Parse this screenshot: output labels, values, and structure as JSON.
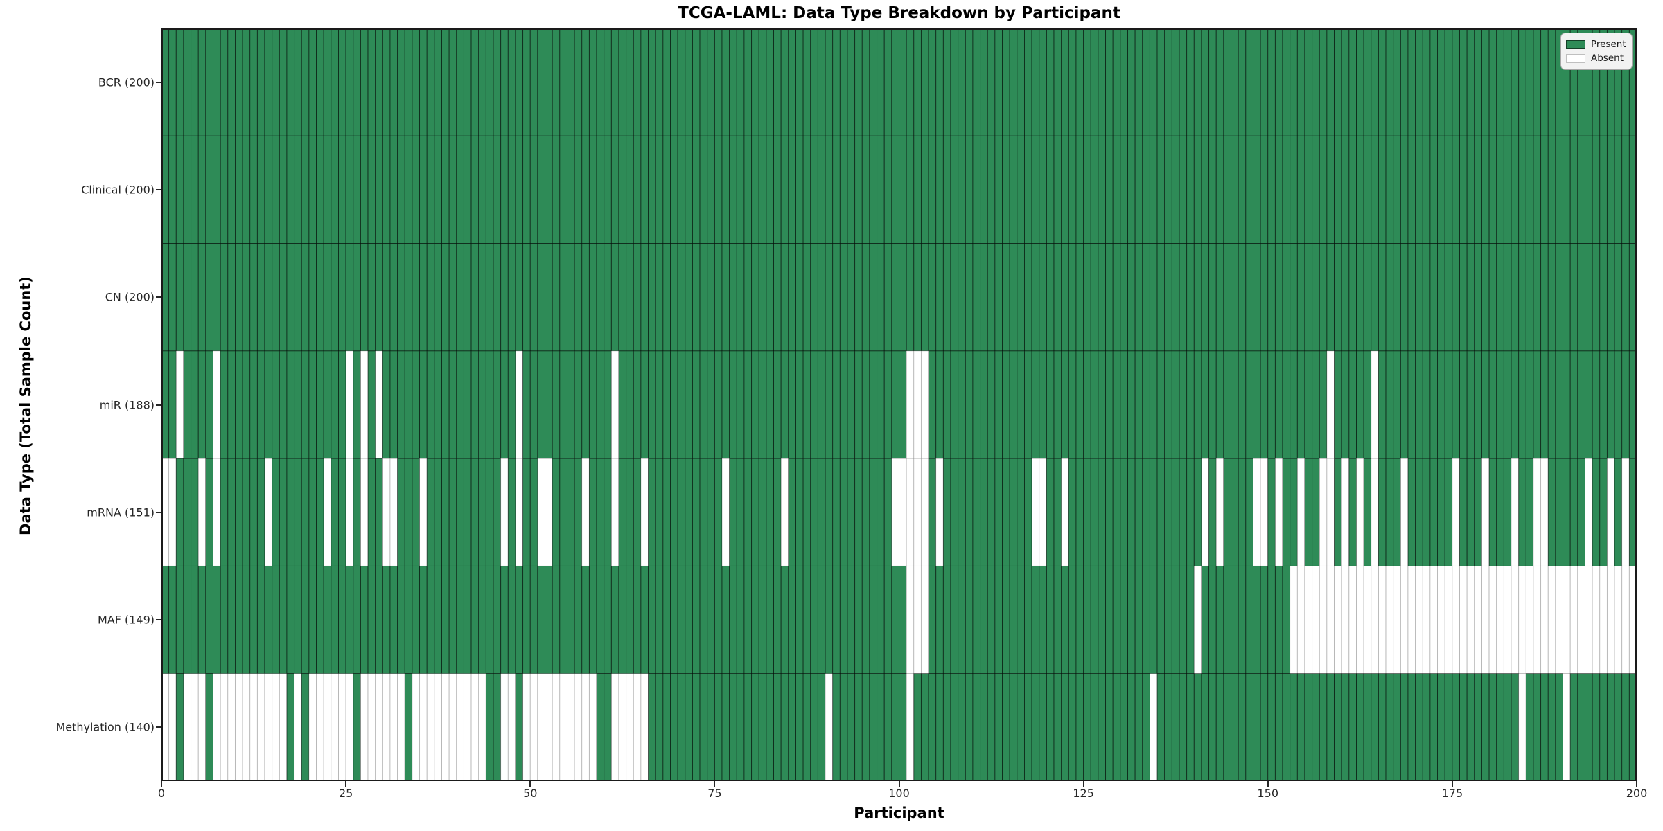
{
  "title": "TCGA-LAML: Data Type Breakdown by Participant",
  "xlabel": "Participant",
  "ylabel": "Data Type (Total Sample Count)",
  "legend": {
    "present_label": "Present",
    "absent_label": "Absent"
  },
  "colors": {
    "present": "#2E8B57",
    "present_edge": "rgba(0,0,0,0.60)",
    "absent": "#ffffff",
    "absent_edge": "rgba(0,0,0,0.22)",
    "spine": "#1a1a1a",
    "legend_bg": "#f2f2f2",
    "legend_border": "#a6a6a6"
  },
  "chart_data": {
    "type": "heatmap",
    "title": "TCGA-LAML: Data Type Breakdown by Participant",
    "xlabel": "Participant",
    "ylabel": "Data Type (Total Sample Count)",
    "n_participants": 200,
    "x_ticks": [
      0,
      25,
      50,
      75,
      100,
      125,
      150,
      175,
      200
    ],
    "legend_entries": [
      "Present",
      "Absent"
    ],
    "legend_position": "upper right",
    "rows": [
      {
        "label": "BCR (200)",
        "data_type": "BCR",
        "present_count": 200,
        "absent_participants": []
      },
      {
        "label": "Clinical (200)",
        "data_type": "Clinical",
        "present_count": 200,
        "absent_participants": []
      },
      {
        "label": "CN (200)",
        "data_type": "CN",
        "present_count": 200,
        "absent_participants": []
      },
      {
        "label": "miR (188)",
        "data_type": "miR",
        "present_count": 188,
        "absent_participants": [
          2,
          7,
          25,
          27,
          29,
          48,
          61,
          101,
          102,
          103,
          158,
          164
        ]
      },
      {
        "label": "mRNA (151)",
        "data_type": "mRNA",
        "present_count": 151,
        "absent_participants": [
          0,
          1,
          5,
          7,
          14,
          22,
          25,
          27,
          30,
          31,
          35,
          46,
          48,
          51,
          52,
          57,
          61,
          65,
          76,
          84,
          99,
          100,
          101,
          102,
          103,
          105,
          118,
          119,
          122,
          141,
          143,
          148,
          149,
          151,
          154,
          157,
          158,
          160,
          162,
          164,
          168,
          175,
          179,
          183,
          186,
          187,
          193,
          196,
          198
        ]
      },
      {
        "label": "MAF (149)",
        "data_type": "MAF",
        "present_count": 149,
        "absent_participants": [
          101,
          102,
          103,
          140,
          153,
          154,
          155,
          156,
          157,
          158,
          159,
          160,
          161,
          162,
          163,
          164,
          165,
          166,
          167,
          168,
          169,
          170,
          171,
          172,
          173,
          174,
          175,
          176,
          177,
          178,
          179,
          180,
          181,
          182,
          183,
          184,
          185,
          186,
          187,
          188,
          189,
          190,
          191,
          192,
          193,
          194,
          195,
          196,
          197,
          198,
          199
        ]
      },
      {
        "label": "Methylation (140)",
        "data_type": "Methylation",
        "present_count": 140,
        "absent_participants": [
          0,
          1,
          3,
          4,
          5,
          7,
          8,
          9,
          10,
          11,
          12,
          13,
          14,
          15,
          16,
          18,
          20,
          21,
          22,
          23,
          24,
          25,
          27,
          28,
          29,
          30,
          31,
          32,
          34,
          35,
          36,
          37,
          38,
          39,
          40,
          41,
          42,
          43,
          46,
          47,
          49,
          50,
          51,
          52,
          53,
          54,
          55,
          56,
          57,
          58,
          61,
          62,
          63,
          64,
          65,
          90,
          101,
          134,
          184,
          190
        ]
      }
    ]
  }
}
